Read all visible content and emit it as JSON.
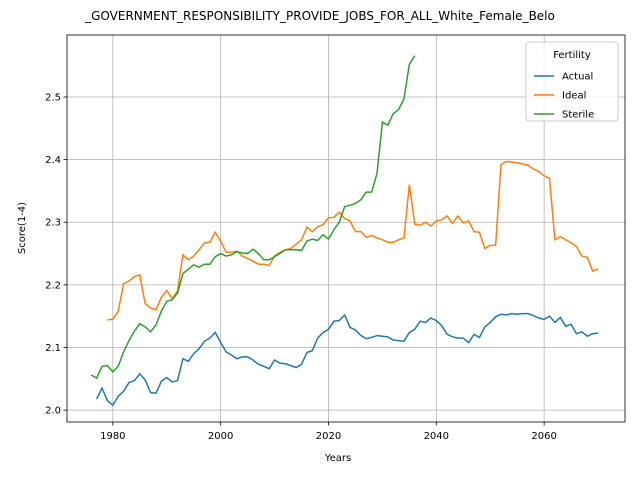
{
  "chart_data": {
    "type": "line",
    "title": "_GOVERNMENT_RESPONSIBILITY_PROVIDE_JOBS_FOR_ALL_White_Female_Belo",
    "xlabel": "Years",
    "ylabel": "Score(1-4)",
    "x": [
      1976,
      1977,
      1978,
      1979,
      1980,
      1981,
      1982,
      1983,
      1984,
      1985,
      1986,
      1987,
      1988,
      1989,
      1990,
      1991,
      1992,
      1993,
      1994,
      1995,
      1996,
      1997,
      1998,
      1999,
      2000,
      2001,
      2002,
      2003,
      2004,
      2005,
      2006,
      2007,
      2008,
      2009,
      2010,
      2011,
      2012,
      2013,
      2014,
      2015,
      2016,
      2017,
      2018,
      2019,
      2020,
      2021,
      2022,
      2023,
      2024,
      2025,
      2026,
      2027,
      2028,
      2029,
      2030,
      2031,
      2032,
      2033,
      2034,
      2035,
      2036,
      2037,
      2038,
      2039,
      2040,
      2041,
      2042,
      2043,
      2044,
      2045,
      2046,
      2047,
      2048,
      2049,
      2050,
      2051,
      2052,
      2053,
      2054,
      2055,
      2056,
      2057,
      2058,
      2059,
      2060,
      2061,
      2062,
      2063,
      2064,
      2065,
      2066,
      2067,
      2068,
      2069,
      2070
    ],
    "series": [
      {
        "name": "Actual",
        "color": "#1f77b4",
        "values": [
          null,
          2.018,
          2.035,
          2.015,
          2.008,
          2.022,
          2.03,
          2.044,
          2.047,
          2.058,
          2.048,
          2.028,
          2.027,
          2.046,
          2.052,
          2.045,
          2.047,
          2.082,
          2.078,
          2.09,
          2.098,
          2.11,
          2.115,
          2.124,
          2.108,
          2.093,
          2.088,
          2.082,
          2.085,
          2.085,
          2.08,
          2.073,
          2.07,
          2.066,
          2.08,
          2.075,
          2.074,
          2.071,
          2.068,
          2.073,
          2.092,
          2.095,
          2.115,
          2.124,
          2.129,
          2.142,
          2.143,
          2.152,
          2.132,
          2.128,
          2.119,
          2.114,
          2.116,
          2.119,
          2.118,
          2.117,
          2.112,
          2.111,
          2.11,
          2.124,
          2.129,
          2.142,
          2.14,
          2.147,
          2.143,
          2.135,
          2.121,
          2.117,
          2.115,
          2.115,
          2.108,
          2.121,
          2.116,
          2.133,
          2.14,
          2.149,
          2.153,
          2.152,
          2.154,
          2.153,
          2.154,
          2.154,
          2.151,
          2.147,
          2.145,
          2.15,
          2.14,
          2.148,
          2.134,
          2.137,
          2.122,
          2.125,
          2.118,
          2.122,
          2.123
        ]
      },
      {
        "name": "Ideal",
        "color": "#ff7f0e",
        "values": [
          null,
          null,
          null,
          2.144,
          2.145,
          2.158,
          2.202,
          2.206,
          2.213,
          2.216,
          2.17,
          2.163,
          2.16,
          2.18,
          2.191,
          2.178,
          2.19,
          2.248,
          2.24,
          2.246,
          2.256,
          2.267,
          2.268,
          2.284,
          2.27,
          2.252,
          2.252,
          2.254,
          2.246,
          2.242,
          2.238,
          2.233,
          2.233,
          2.231,
          2.246,
          2.252,
          2.256,
          2.258,
          2.265,
          2.272,
          2.292,
          2.285,
          2.293,
          2.296,
          2.307,
          2.308,
          2.316,
          2.306,
          2.302,
          2.285,
          2.285,
          2.276,
          2.279,
          2.275,
          2.272,
          2.268,
          2.268,
          2.272,
          2.275,
          2.36,
          2.297,
          2.295,
          2.3,
          2.294,
          2.302,
          2.304,
          2.31,
          2.298,
          2.31,
          2.299,
          2.302,
          2.285,
          2.284,
          2.258,
          2.263,
          2.263,
          2.392,
          2.397,
          2.396,
          2.395,
          2.393,
          2.391,
          2.385,
          2.381,
          2.374,
          2.37,
          2.272,
          2.277,
          2.272,
          2.267,
          2.261,
          2.246,
          2.244,
          2.222,
          2.225
        ]
      },
      {
        "name": "Sterile",
        "color": "#2ca02c",
        "values": [
          2.056,
          2.051,
          2.07,
          2.071,
          2.061,
          2.07,
          2.093,
          2.111,
          2.126,
          2.138,
          2.133,
          2.125,
          2.136,
          2.158,
          2.174,
          2.176,
          2.187,
          2.218,
          2.225,
          2.232,
          2.228,
          2.233,
          2.233,
          2.245,
          2.25,
          2.246,
          2.248,
          2.253,
          2.251,
          2.25,
          2.257,
          2.25,
          2.24,
          2.24,
          2.245,
          2.25,
          2.256,
          2.256,
          2.256,
          2.255,
          2.27,
          2.273,
          2.271,
          2.28,
          2.273,
          2.288,
          2.3,
          2.325,
          2.327,
          2.33,
          2.336,
          2.348,
          2.348,
          2.378,
          2.46,
          2.455,
          2.473,
          2.48,
          2.497,
          2.552,
          2.566,
          null,
          null,
          null,
          null,
          null,
          null,
          null,
          null,
          null,
          null,
          null,
          null,
          null,
          null,
          null,
          null,
          null,
          null,
          null,
          null,
          null,
          null,
          null,
          null,
          null,
          null,
          null,
          null,
          null,
          null,
          null,
          null,
          null,
          null
        ]
      }
    ],
    "xlim": [
      1971.5,
      2075
    ],
    "xticks": [
      1980,
      2000,
      2020,
      2040,
      2060
    ],
    "ylim": [
      1.981,
      2.599
    ],
    "yticks": [
      {
        "value": 2,
        "label": "2.0"
      },
      2.1,
      2.2,
      2.3,
      2.4,
      2.5
    ],
    "grid": true,
    "legend_title": "Fertility",
    "legend_loc": "upper right"
  }
}
